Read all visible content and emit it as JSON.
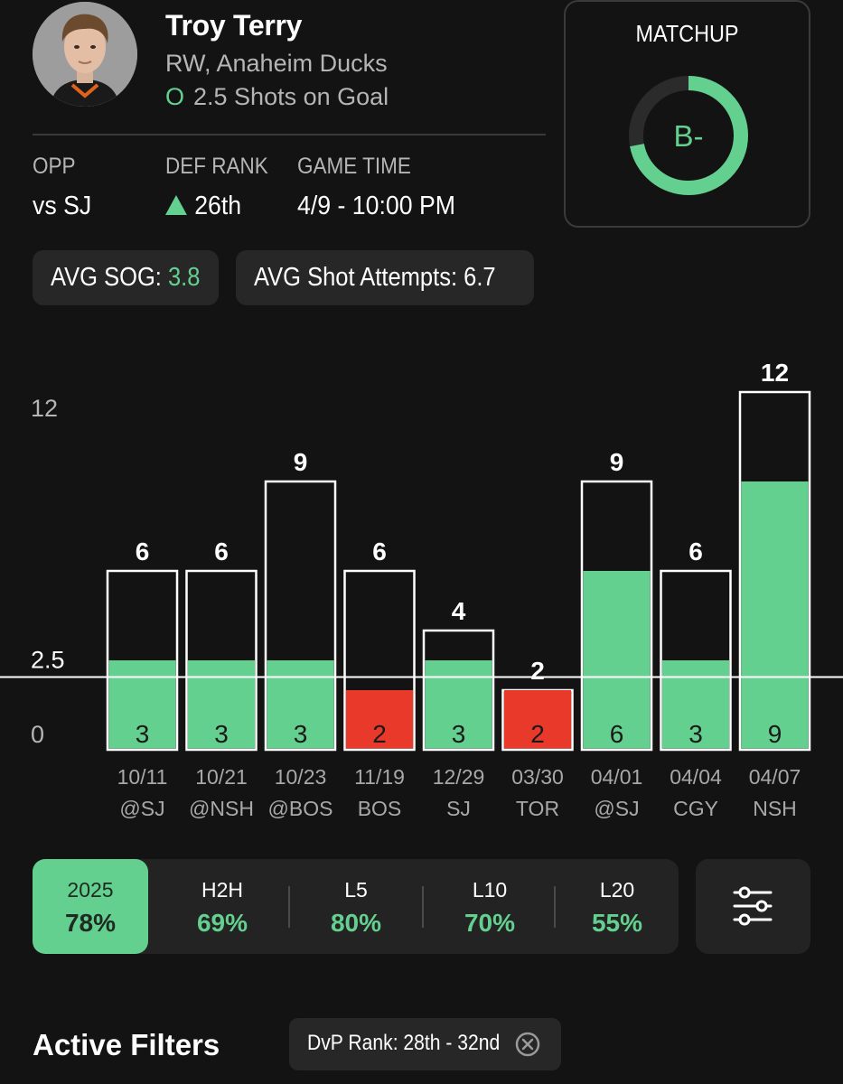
{
  "player": {
    "name": "Troy Terry",
    "position_team": "RW, Anaheim Ducks",
    "prop_marker": "O",
    "prop_text": "2.5 Shots on Goal"
  },
  "game_info": {
    "opp_label": "OPP",
    "opp_value": "vs SJ",
    "def_rank_label": "DEF RANK",
    "def_rank_value": "26th",
    "game_time_label": "GAME TIME",
    "game_time_value": "4/9 - 10:00 PM"
  },
  "matchup": {
    "title": "MATCHUP",
    "grade": "B-",
    "fill_fraction": 0.72
  },
  "averages": {
    "sog_label": "AVG SOG: ",
    "sog_value": "3.8",
    "attempts_label": "AVG Shot Attempts: 6.7"
  },
  "chart_data": {
    "type": "bar",
    "y_ticks": [
      "12",
      "2.5",
      "0"
    ],
    "line": 2.5,
    "ylim": [
      0,
      12
    ],
    "categories": [
      "10/11",
      "10/21",
      "10/23",
      "11/19",
      "12/29",
      "03/30",
      "04/01",
      "04/04",
      "04/07"
    ],
    "opponents": [
      "@SJ",
      "@NSH",
      "@BOS",
      "BOS",
      "SJ",
      "TOR",
      "@SJ",
      "CGY",
      "NSH"
    ],
    "series": [
      {
        "name": "Shot Attempts",
        "values": [
          6,
          6,
          9,
          6,
          4,
          2,
          9,
          6,
          12
        ]
      },
      {
        "name": "Shots on Goal",
        "values": [
          3,
          3,
          3,
          2,
          3,
          2,
          6,
          3,
          9
        ]
      }
    ],
    "colors": {
      "over": "#64d08f",
      "under": "#e8392a",
      "outline": "#ffffff"
    }
  },
  "tabs": [
    {
      "label": "2025",
      "value": "78%"
    },
    {
      "label": "H2H",
      "value": "69%"
    },
    {
      "label": "L5",
      "value": "80%"
    },
    {
      "label": "L10",
      "value": "70%"
    },
    {
      "label": "L20",
      "value": "55%"
    }
  ],
  "filters": {
    "title": "Active Filters",
    "chip_label": "DvP Rank: 28th - 32nd"
  },
  "colors": {
    "accent": "#64d08f",
    "danger": "#e8392a",
    "background": "#131313",
    "card": "#232323"
  }
}
